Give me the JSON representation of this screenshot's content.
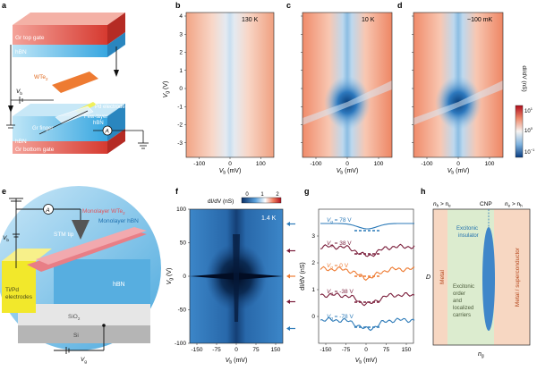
{
  "panels": {
    "a": "a",
    "b": "b",
    "c": "c",
    "d": "d",
    "e": "e",
    "f": "f",
    "g": "g",
    "h": "h"
  },
  "colors": {
    "red": "#d7453e",
    "red_light": "#f2c2b5",
    "blue": "#2c7ab8",
    "hbn": "#3fa3dc",
    "orange": "#ee7b32",
    "maroon": "#7a1d3a",
    "green_bg": "#dceccf",
    "salmon_bg": "#f7d7c2",
    "dark_navy": "#0b2a52"
  },
  "panel_a": {
    "gr_top_gate": "Gr top gate",
    "hbn_top": "hBN",
    "wte2": "WTe2",
    "wte2_main": "WTe",
    "wte2_sub": "2",
    "vb": "Vb",
    "vb_main": "V",
    "vb_sub": "b",
    "pd_electrode": "Pd electrode",
    "few_layer": "Few-layer",
    "few_layer_hbn": "hBN",
    "gr_finger": "Gr finger",
    "ammeter": "A",
    "hbn_bottom": "hBN",
    "gr_bottom_gate": "Gr bottom gate"
  },
  "heatmaps": [
    {
      "id": "b",
      "temperature": "130 K"
    },
    {
      "id": "c",
      "temperature": "10 K"
    },
    {
      "id": "d",
      "temperature": "~100 mK"
    }
  ],
  "heatmap_axes": {
    "ylabel_main": "V",
    "ylabel_sub": "g",
    "ylabel_unit": " (V)",
    "xlabel_main": "V",
    "xlabel_sub": "b",
    "xlabel_unit": " (mV)",
    "y_ticks": [
      "4",
      "3",
      "2",
      "1",
      "0",
      "-1",
      "-2",
      "-3"
    ],
    "x_ticks": [
      "-100",
      "0",
      "100"
    ],
    "colorbar_label": "dI/dV (nS)",
    "colorbar_ticks": [
      "10^1",
      "10^0",
      "10^-1"
    ],
    "cb_ten": "10",
    "cb_exp": [
      "1",
      "0",
      "−1"
    ]
  },
  "panel_e": {
    "ammeter": "A",
    "vb_main": "V",
    "vb_sub": "b",
    "stm_tip": "STM tip",
    "monolayer_wte2_main": "Monolayer WTe",
    "monolayer_wte2_sub": "2",
    "monolayer_hbn": "Monolayer hBN",
    "hbn": "hBN",
    "ti_pd": "Ti/Pd",
    "electrodes": "electrodes",
    "sio2_main": "SiO",
    "sio2_sub": "2",
    "si": "Si",
    "vg_main": "V",
    "vg_sub": "g"
  },
  "panel_f": {
    "colorbar_label": "dI/dV (nS)",
    "colorbar_ticks": [
      "0",
      "1",
      "2"
    ],
    "temperature": "1.4 K",
    "y_ticks": [
      "100",
      "50",
      "0",
      "-50",
      "-100"
    ],
    "x_ticks": [
      "-150",
      "-75",
      "0",
      "75",
      "150"
    ],
    "ylabel_main": "V",
    "ylabel_sub": "g",
    "ylabel_unit": " (V)",
    "xlabel_main": "V",
    "xlabel_sub": "b",
    "xlabel_unit": " (mV)"
  },
  "panel_g": {
    "ylabel": "dI/dV (nS)",
    "y_ticks": [
      "3",
      "2",
      "1",
      "0"
    ],
    "x_ticks": [
      "-150",
      "-75",
      "0",
      "75",
      "150"
    ],
    "xlabel_main": "V",
    "xlabel_sub": "b",
    "xlabel_unit": " (mV)",
    "labels": [
      {
        "main": "V",
        "sub": "g",
        "value": " = 78 V",
        "color": "#2c7ab8"
      },
      {
        "main": "V",
        "sub": "g",
        "value": " = 38 V",
        "color": "#7a1d3a"
      },
      {
        "main": "V",
        "sub": "g",
        "value": " = 0 V",
        "color": "#ee7b32"
      },
      {
        "main": "V",
        "sub": "g",
        "value": " = -38 V",
        "color": "#7a1d3a"
      },
      {
        "main": "V",
        "sub": "g",
        "value": " = -78 V",
        "color": "#2c7ab8"
      }
    ]
  },
  "panel_h": {
    "top_left_main": "n",
    "top_left_sub1": "h",
    "top_left_mid": " > n",
    "top_left_sub2": "e",
    "top_right_main": "n",
    "top_right_sub1": "e",
    "top_right_mid": " > n",
    "top_right_sub2": "h",
    "cnp": "CNP",
    "metal": "Metal",
    "excitonic_insulator_1": "Excitonic",
    "excitonic_insulator_2": "insulator",
    "excitonic_order": [
      "Excitonic",
      "order",
      "and",
      "localized",
      "carriers"
    ],
    "metal_superconductor": "Metal / superconductor",
    "ylabel": "D",
    "xlabel_main": "n",
    "xlabel_sub": "g"
  }
}
